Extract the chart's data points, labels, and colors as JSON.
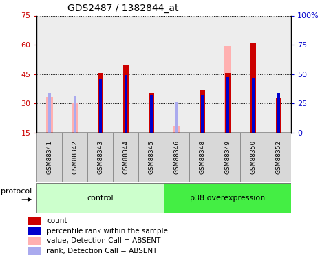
{
  "title": "GDS2487 / 1382844_at",
  "samples": [
    "GSM88341",
    "GSM88342",
    "GSM88343",
    "GSM88344",
    "GSM88345",
    "GSM88346",
    "GSM88348",
    "GSM88349",
    "GSM88350",
    "GSM88352"
  ],
  "groups": [
    {
      "label": "control",
      "indices": [
        0,
        1,
        2,
        3,
        4
      ],
      "color": "#ccffcc"
    },
    {
      "label": "p38 overexpression",
      "indices": [
        5,
        6,
        7,
        8,
        9
      ],
      "color": "#44ee44"
    }
  ],
  "red_bars": [
    0,
    0,
    45.5,
    49.5,
    35.5,
    0,
    37.0,
    45.5,
    61.0,
    32.5
  ],
  "blue_bars": [
    0,
    0,
    42.5,
    44.5,
    34.5,
    0,
    34.5,
    43.5,
    43.0,
    35.5
  ],
  "pink_bars": [
    33.5,
    30.5,
    0,
    0,
    0,
    18.5,
    0,
    59.5,
    0,
    0
  ],
  "light_blue_bars": [
    35.5,
    34.0,
    0,
    0,
    0,
    31.0,
    0,
    0,
    0,
    0
  ],
  "ylim_left": [
    15,
    75
  ],
  "ylim_right": [
    0,
    100
  ],
  "yticks_left": [
    15,
    30,
    45,
    60,
    75
  ],
  "yticks_right": [
    0,
    25,
    50,
    75,
    100
  ],
  "ytick_labels_right": [
    "0",
    "25",
    "50",
    "75",
    "100%"
  ],
  "red_color": "#cc0000",
  "blue_color": "#0000cc",
  "pink_color": "#ffb0b0",
  "light_blue_color": "#aaaaee",
  "bg_color": "#ffffff",
  "grid_color": "#000000",
  "left_tick_color": "#cc0000",
  "right_tick_color": "#0000cc",
  "legend_items": [
    {
      "label": "count",
      "color": "#cc0000"
    },
    {
      "label": "percentile rank within the sample",
      "color": "#0000cc"
    },
    {
      "label": "value, Detection Call = ABSENT",
      "color": "#ffb0b0"
    },
    {
      "label": "rank, Detection Call = ABSENT",
      "color": "#aaaaee"
    }
  ],
  "col_bg_color": "#d8d8d8",
  "plot_bg": "#ffffff"
}
